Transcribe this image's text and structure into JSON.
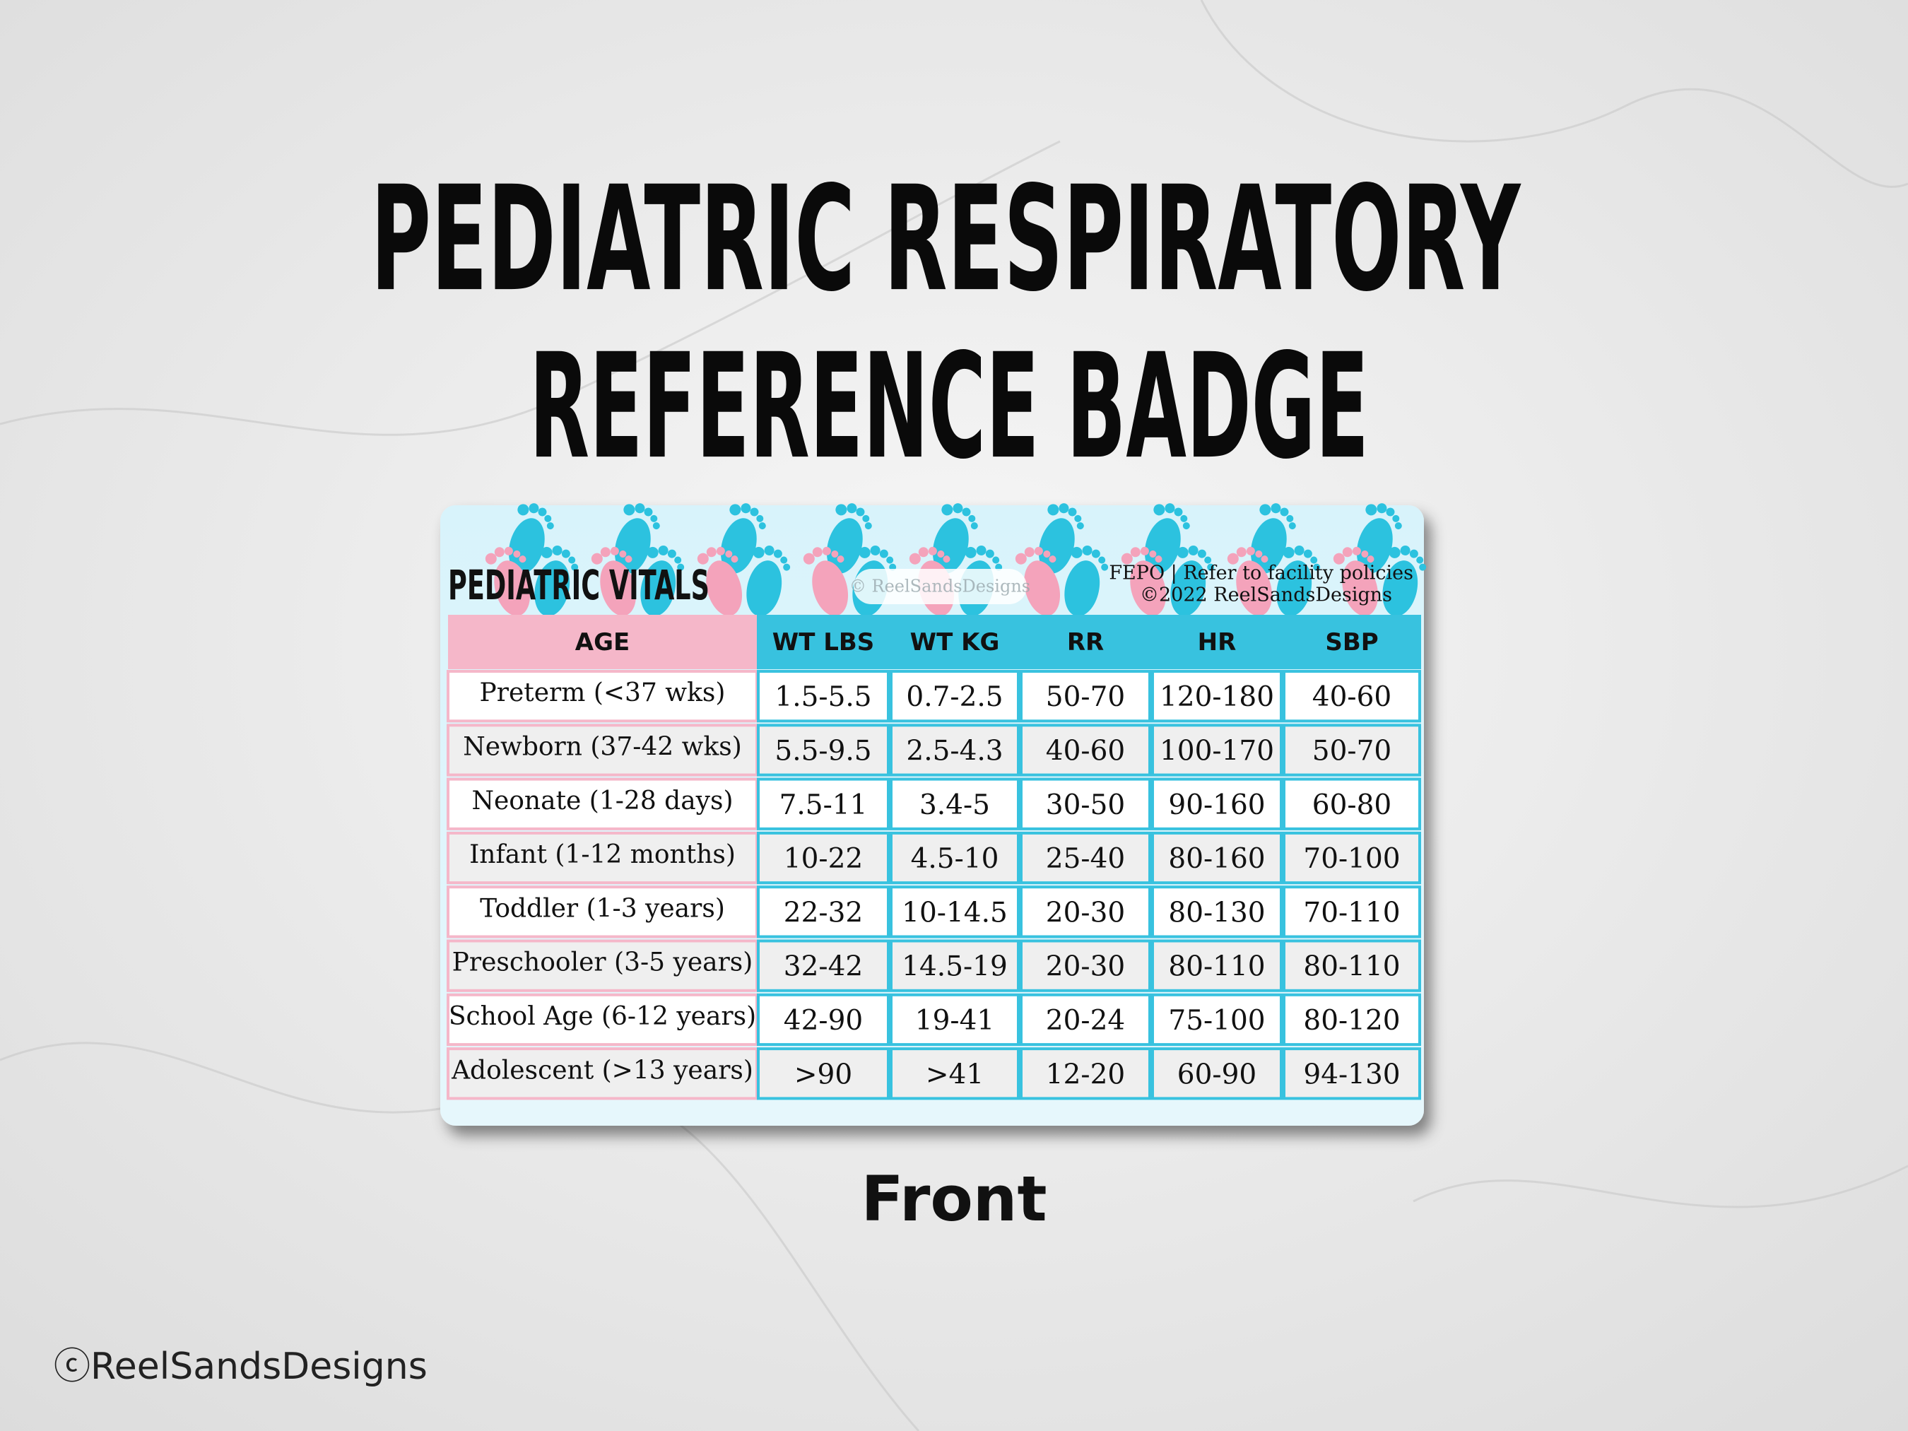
{
  "header": {
    "title_line1": "PEDIATRIC RESPIRATORY",
    "title_line2": "REFERENCE BADGE"
  },
  "badge": {
    "heading": "PEDIATRIC VITALS",
    "note_line1": "FEPO | Refer to facility policies",
    "note_line2": "©2022 ReelSandsDesigns",
    "watermark": "© ReelSandsDesigns"
  },
  "table": {
    "header": [
      "AGE",
      "WT LBS",
      "WT KG",
      "RR",
      "HR",
      "SBP"
    ],
    "rows": [
      [
        "Preterm (<37 wks)",
        "1.5-5.5",
        "0.7-2.5",
        "50-70",
        "120-180",
        "40-60"
      ],
      [
        "Newborn (37-42 wks)",
        "5.5-9.5",
        "2.5-4.3",
        "40-60",
        "100-170",
        "50-70"
      ],
      [
        "Neonate (1-28 days)",
        "7.5-11",
        "3.4-5",
        "30-50",
        "90-160",
        "60-80"
      ],
      [
        "Infant (1-12 months)",
        "10-22",
        "4.5-10",
        "25-40",
        "80-160",
        "70-100"
      ],
      [
        "Toddler (1-3 years)",
        "22-32",
        "10-14.5",
        "20-30",
        "80-130",
        "70-110"
      ],
      [
        "Preschooler (3-5 years)",
        "32-42",
        "14.5-19",
        "20-30",
        "80-110",
        "80-110"
      ],
      [
        "School Age (6-12 years)",
        "42-90",
        "19-41",
        "20-24",
        "75-100",
        "80-120"
      ],
      [
        "Adolescent (>13 years)",
        ">90",
        ">41",
        "12-20",
        "60-90",
        "94-130"
      ]
    ]
  },
  "caption": "Front",
  "footer": "ⓒReelSandsDesigns"
}
